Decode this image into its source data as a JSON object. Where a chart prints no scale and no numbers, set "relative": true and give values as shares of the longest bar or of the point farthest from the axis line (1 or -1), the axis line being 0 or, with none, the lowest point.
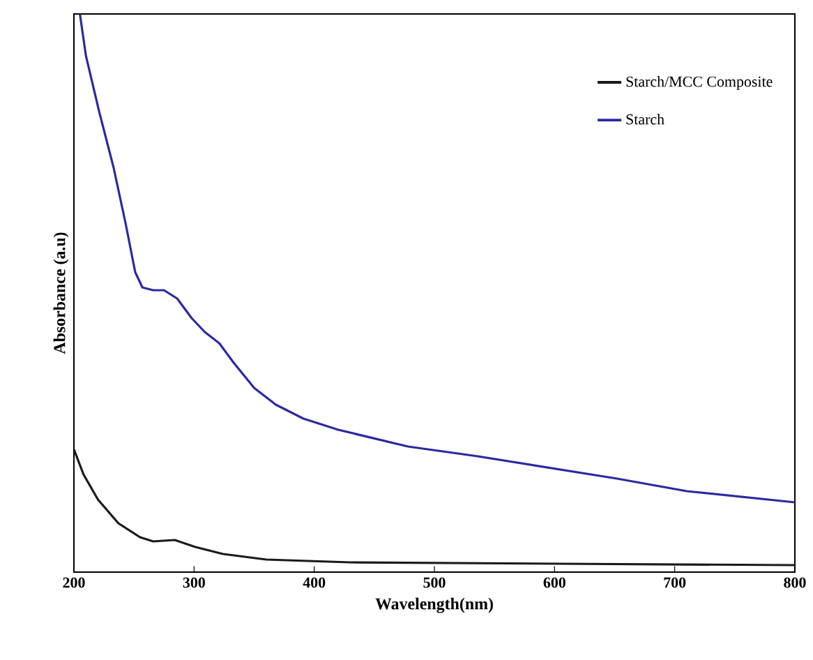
{
  "chart_data": {
    "type": "line",
    "relative": true,
    "xlabel": "Wavelength(nm)",
    "ylabel": "Absorbance (a.u)",
    "xlim": [
      200,
      800
    ],
    "xticks": [
      200,
      300,
      400,
      500,
      600,
      700,
      800
    ],
    "legend": "top right",
    "series": [
      {
        "name": "Starch/MCC Composite",
        "color": "#1a1a1a",
        "x": [
          200,
          208,
          220,
          237,
          255,
          266,
          284,
          301,
          324,
          360,
          429,
          603,
          800
        ],
        "values": [
          0.22,
          0.175,
          0.13,
          0.0875,
          0.0625,
          0.055,
          0.0575,
          0.045,
          0.0325,
          0.0225,
          0.0175,
          0.015,
          0.0125
        ]
      },
      {
        "name": "Starch",
        "color": "#2a2aa0",
        "x": [
          205,
          210,
          221,
          233,
          243,
          251,
          257,
          266,
          275,
          286,
          298,
          309,
          321,
          333,
          350,
          368,
          391,
          420,
          478,
          536,
          594,
          652,
          710,
          800
        ],
        "values": [
          1.0,
          0.925,
          0.825,
          0.725,
          0.625,
          0.5375,
          0.51,
          0.505,
          0.505,
          0.49,
          0.455,
          0.43,
          0.41,
          0.375,
          0.33,
          0.3,
          0.275,
          0.255,
          0.225,
          0.2075,
          0.1875,
          0.1675,
          0.145,
          0.125
        ]
      }
    ]
  }
}
